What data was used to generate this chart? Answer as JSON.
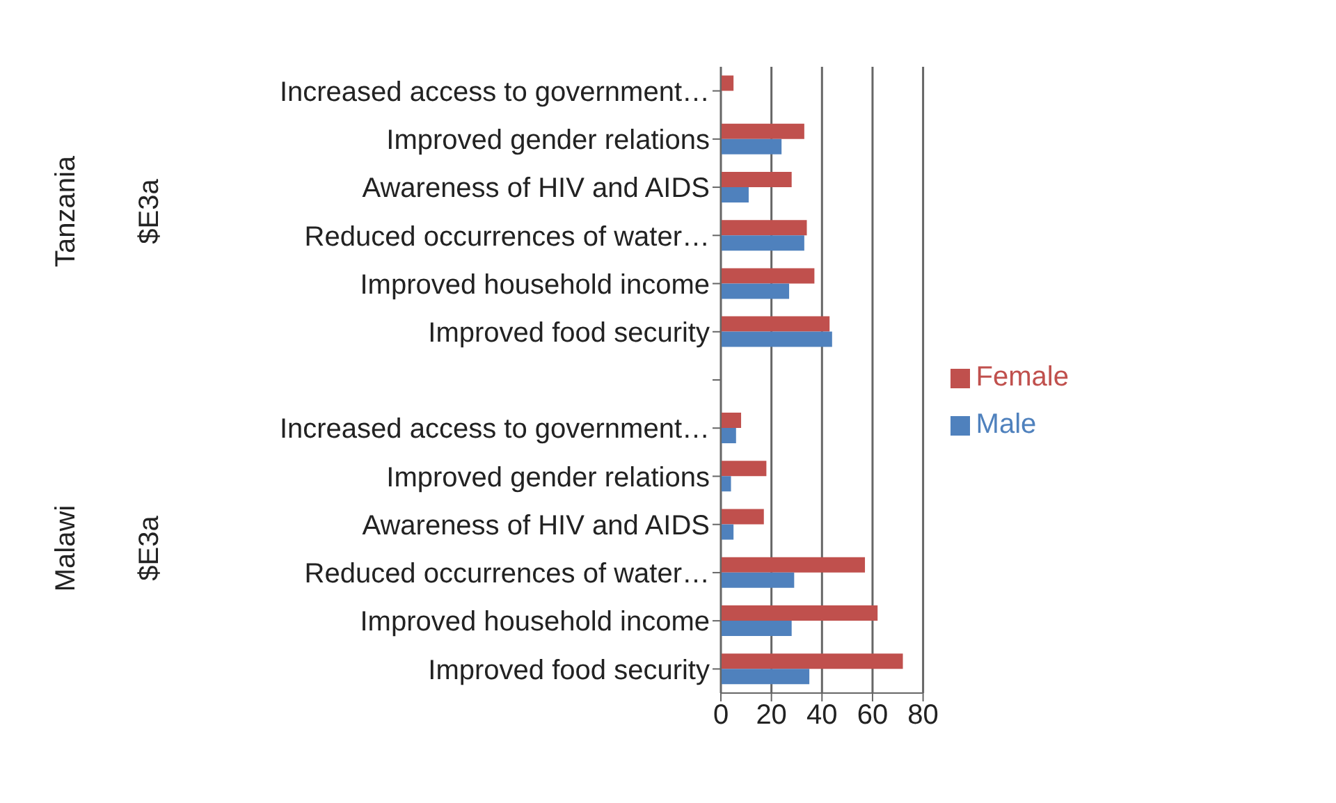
{
  "chart_data": {
    "type": "bar",
    "orientation": "horizontal",
    "categories": [
      "Increased access to government…",
      "Improved gender relations",
      "Awareness of HIV and AIDS",
      "Reduced occurrences of water…",
      "Improved household income",
      "Improved food security",
      null,
      "Increased access to government…",
      "Improved gender relations",
      "Awareness of HIV and AIDS",
      "Reduced occurrences of water…",
      "Improved household income",
      "Improved food security"
    ],
    "series": [
      {
        "name": "Female",
        "color": "#c0504d",
        "values": [
          5,
          33,
          28,
          34,
          37,
          43,
          null,
          8,
          18,
          17,
          57,
          62,
          72
        ]
      },
      {
        "name": "Male",
        "color": "#4f81bd",
        "values": [
          0,
          24,
          11,
          33,
          27,
          44,
          null,
          6,
          4,
          5,
          29,
          28,
          35
        ]
      }
    ],
    "xlim": [
      0,
      80
    ],
    "xticks": [
      0,
      20,
      40,
      60,
      80
    ],
    "grid": "x",
    "legend": "right",
    "annotations": [
      "Tanzania",
      "$E3a",
      "Malawi",
      "$E3a"
    ]
  }
}
